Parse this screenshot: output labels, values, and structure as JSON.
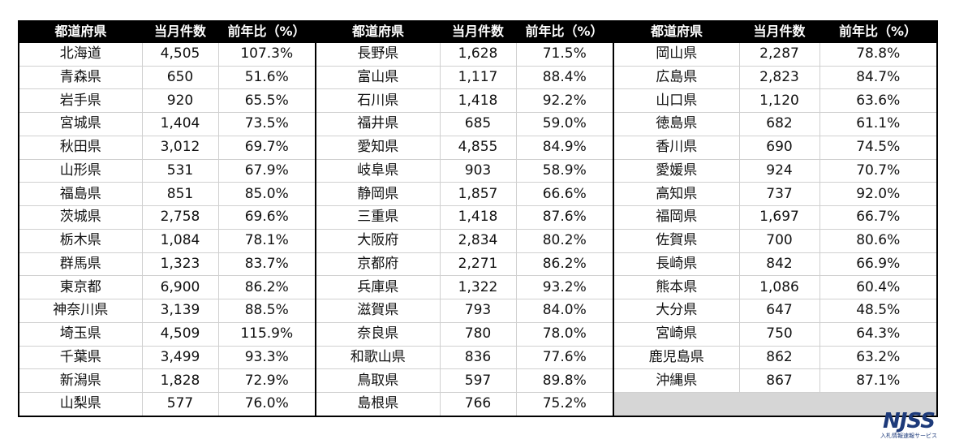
{
  "headers": {
    "pref": "都道府県",
    "count": "当月件数",
    "yoy": "前年比（%）"
  },
  "blocks": [
    {
      "rows": [
        [
          "北海道",
          "4,505",
          "107.3%"
        ],
        [
          "青森県",
          "650",
          "51.6%"
        ],
        [
          "岩手県",
          "920",
          "65.5%"
        ],
        [
          "宮城県",
          "1,404",
          "73.5%"
        ],
        [
          "秋田県",
          "3,012",
          "69.7%"
        ],
        [
          "山形県",
          "531",
          "67.9%"
        ],
        [
          "福島県",
          "851",
          "85.0%"
        ],
        [
          "茨城県",
          "2,758",
          "69.6%"
        ],
        [
          "栃木県",
          "1,084",
          "78.1%"
        ],
        [
          "群馬県",
          "1,323",
          "83.7%"
        ],
        [
          "東京都",
          "6,900",
          "86.2%"
        ],
        [
          "神奈川県",
          "3,139",
          "88.5%"
        ],
        [
          "埼玉県",
          "4,509",
          "115.9%"
        ],
        [
          "千葉県",
          "3,499",
          "93.3%"
        ],
        [
          "新潟県",
          "1,828",
          "72.9%"
        ],
        [
          "山梨県",
          "577",
          "76.0%"
        ]
      ]
    },
    {
      "rows": [
        [
          "長野県",
          "1,628",
          "71.5%"
        ],
        [
          "富山県",
          "1,117",
          "88.4%"
        ],
        [
          "石川県",
          "1,418",
          "92.2%"
        ],
        [
          "福井県",
          "685",
          "59.0%"
        ],
        [
          "愛知県",
          "4,855",
          "84.9%"
        ],
        [
          "岐阜県",
          "903",
          "58.9%"
        ],
        [
          "静岡県",
          "1,857",
          "66.6%"
        ],
        [
          "三重県",
          "1,418",
          "87.6%"
        ],
        [
          "大阪府",
          "2,834",
          "80.2%"
        ],
        [
          "京都府",
          "2,271",
          "86.2%"
        ],
        [
          "兵庫県",
          "1,322",
          "93.2%"
        ],
        [
          "滋賀県",
          "793",
          "84.0%"
        ],
        [
          "奈良県",
          "780",
          "78.0%"
        ],
        [
          "和歌山県",
          "836",
          "77.6%"
        ],
        [
          "鳥取県",
          "597",
          "89.8%"
        ],
        [
          "島根県",
          "766",
          "75.2%"
        ]
      ]
    },
    {
      "rows": [
        [
          "岡山県",
          "2,287",
          "78.8%"
        ],
        [
          "広島県",
          "2,823",
          "84.7%"
        ],
        [
          "山口県",
          "1,120",
          "63.6%"
        ],
        [
          "徳島県",
          "682",
          "61.1%"
        ],
        [
          "香川県",
          "690",
          "74.5%"
        ],
        [
          "愛媛県",
          "924",
          "70.7%"
        ],
        [
          "高知県",
          "737",
          "92.0%"
        ],
        [
          "福岡県",
          "1,697",
          "66.7%"
        ],
        [
          "佐賀県",
          "700",
          "80.6%"
        ],
        [
          "長崎県",
          "842",
          "66.9%"
        ],
        [
          "熊本県",
          "1,086",
          "60.4%"
        ],
        [
          "大分県",
          "647",
          "48.5%"
        ],
        [
          "宮崎県",
          "750",
          "64.3%"
        ],
        [
          "鹿児島県",
          "862",
          "63.2%"
        ],
        [
          "沖縄県",
          "867",
          "87.1%"
        ]
      ]
    }
  ],
  "logo": {
    "mark": "NJSS",
    "subtitle": "入札情報速報サービス",
    "color": "#1d3a7a"
  }
}
